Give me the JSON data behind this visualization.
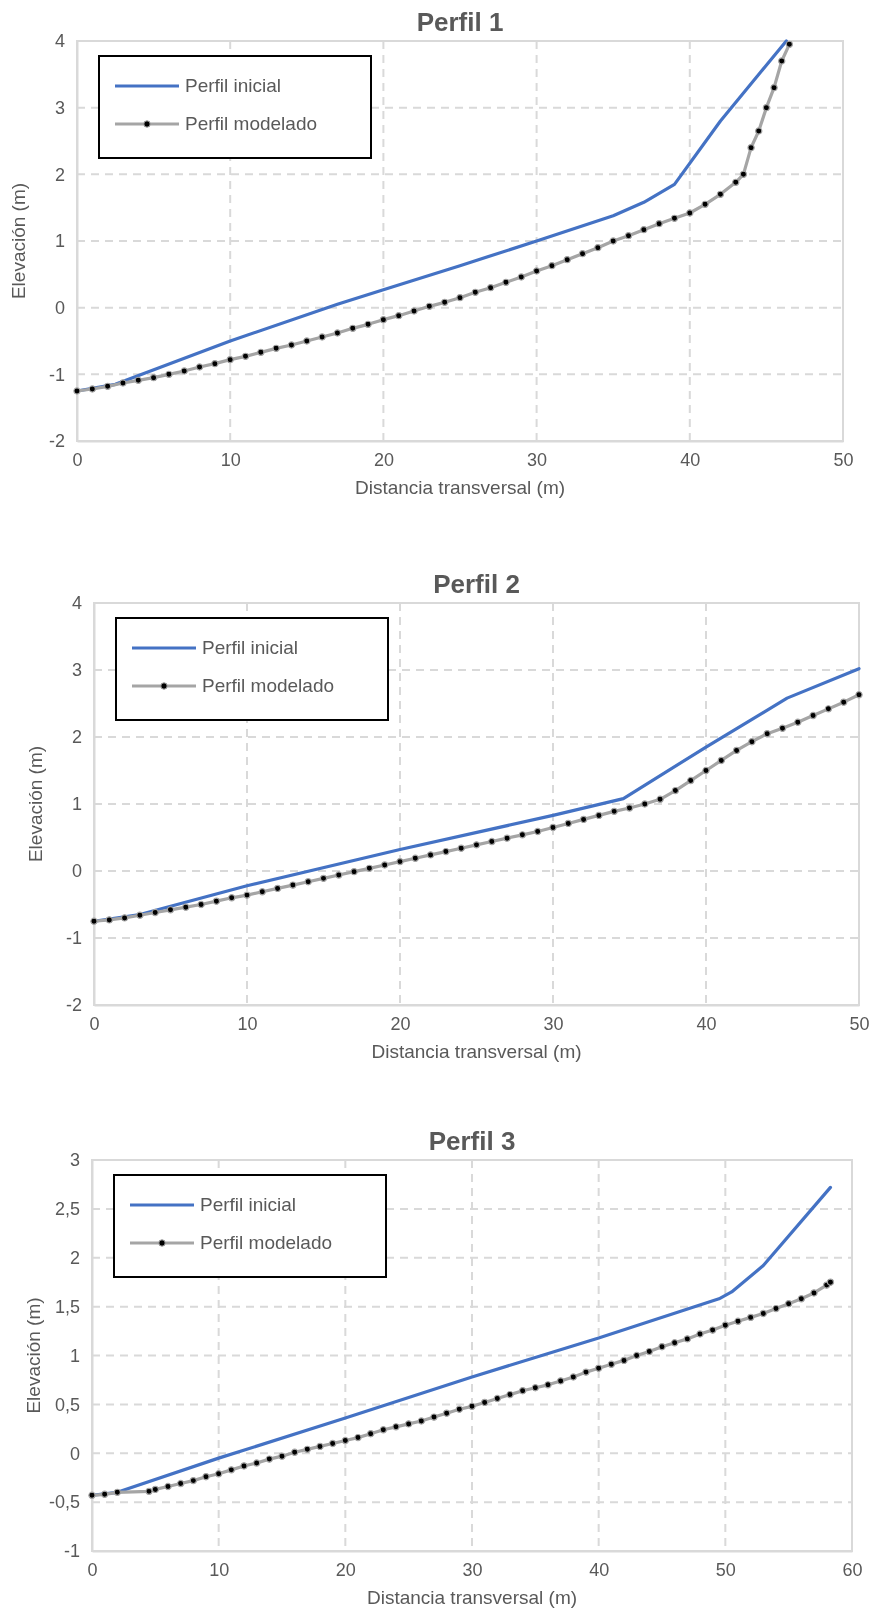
{
  "chart_data": [
    {
      "type": "line",
      "title": "Perfil 1",
      "xlabel": "Distancia transversal (m)",
      "ylabel": "Elevación (m)",
      "xlim": [
        0,
        50
      ],
      "xticks": [
        0,
        10,
        20,
        30,
        40,
        50
      ],
      "ylim": [
        -2,
        4
      ],
      "yticks": [
        -2,
        -1,
        0,
        1,
        2,
        3,
        4
      ],
      "grid": true,
      "legend": "top left",
      "series": [
        {
          "name": "Perfil inicial",
          "color": "#4472c4",
          "marker": "none",
          "x": [
            0,
            2.5,
            10,
            17,
            20,
            25,
            30,
            35,
            37,
            39,
            42,
            46.3
          ],
          "values": [
            -1.25,
            -1.15,
            -0.5,
            0.05,
            0.27,
            0.63,
            1.0,
            1.38,
            1.58,
            1.85,
            2.8,
            4.0
          ]
        },
        {
          "name": "Perfil modelado",
          "color": "#a5a5a5",
          "marker": "circle",
          "x": [
            0,
            1,
            2,
            3,
            4,
            5,
            6,
            7,
            8,
            9,
            10,
            11,
            12,
            13,
            14,
            15,
            16,
            17,
            18,
            19,
            20,
            21,
            22,
            23,
            24,
            25,
            26,
            27,
            28,
            29,
            30,
            31,
            32,
            33,
            34,
            35,
            36,
            37,
            38,
            39,
            40,
            41,
            42,
            43,
            43.5,
            44,
            44.5,
            45,
            45.5,
            46,
            46.5
          ],
          "values": [
            -1.25,
            -1.22,
            -1.18,
            -1.13,
            -1.09,
            -1.05,
            -1.0,
            -0.95,
            -0.89,
            -0.84,
            -0.78,
            -0.73,
            -0.67,
            -0.61,
            -0.56,
            -0.5,
            -0.44,
            -0.38,
            -0.31,
            -0.25,
            -0.18,
            -0.12,
            -0.05,
            0.02,
            0.08,
            0.15,
            0.23,
            0.3,
            0.38,
            0.46,
            0.55,
            0.63,
            0.72,
            0.81,
            0.9,
            1.0,
            1.08,
            1.17,
            1.26,
            1.34,
            1.42,
            1.55,
            1.7,
            1.88,
            2.0,
            2.4,
            2.65,
            3.0,
            3.3,
            3.7,
            3.95
          ]
        }
      ]
    },
    {
      "type": "line",
      "title": "Perfil 2",
      "xlabel": "Distancia transversal (m)",
      "ylabel": "Elevación (m)",
      "xlim": [
        0,
        50
      ],
      "xticks": [
        0,
        10,
        20,
        30,
        40,
        50
      ],
      "ylim": [
        -2,
        4
      ],
      "yticks": [
        -2,
        -1,
        0,
        1,
        2,
        3,
        4
      ],
      "grid": true,
      "legend": "top left",
      "series": [
        {
          "name": "Perfil inicial",
          "color": "#4472c4",
          "marker": "none",
          "x": [
            0,
            3,
            10,
            20,
            30,
            34.6,
            40,
            45.3,
            50
          ],
          "values": [
            -0.75,
            -0.65,
            -0.22,
            0.32,
            0.83,
            1.08,
            1.85,
            2.58,
            3.02
          ]
        },
        {
          "name": "Perfil modelado",
          "color": "#a5a5a5",
          "marker": "circle",
          "x": [
            0,
            1,
            2,
            3,
            4,
            5,
            6,
            7,
            8,
            9,
            10,
            11,
            12,
            13,
            14,
            15,
            16,
            17,
            18,
            19,
            20,
            21,
            22,
            23,
            24,
            25,
            26,
            27,
            28,
            29,
            30,
            31,
            32,
            33,
            34,
            35,
            36,
            37,
            38,
            39,
            40,
            41,
            42,
            43,
            44,
            45,
            46,
            47,
            48,
            49,
            50
          ],
          "values": [
            -0.75,
            -0.73,
            -0.7,
            -0.66,
            -0.62,
            -0.58,
            -0.54,
            -0.5,
            -0.45,
            -0.4,
            -0.36,
            -0.31,
            -0.26,
            -0.21,
            -0.16,
            -0.11,
            -0.06,
            -0.01,
            0.04,
            0.09,
            0.14,
            0.19,
            0.24,
            0.29,
            0.34,
            0.39,
            0.44,
            0.49,
            0.54,
            0.59,
            0.65,
            0.71,
            0.77,
            0.83,
            0.89,
            0.94,
            1.0,
            1.07,
            1.2,
            1.35,
            1.5,
            1.65,
            1.8,
            1.93,
            2.05,
            2.13,
            2.22,
            2.32,
            2.42,
            2.52,
            2.63
          ]
        }
      ]
    },
    {
      "type": "line",
      "title": "Perfil 3",
      "xlabel": "Distancia transversal (m)",
      "ylabel": "Elevación (m)",
      "xlim": [
        0,
        60
      ],
      "xticks": [
        0,
        10,
        20,
        30,
        40,
        50,
        60
      ],
      "ylim": [
        -1,
        3
      ],
      "yticks": [
        -1,
        {
          "value": -0.5,
          "label": "-0,5"
        },
        0,
        {
          "value": 0.5,
          "label": "0,5"
        },
        1,
        {
          "value": 1.5,
          "label": "1,5"
        },
        2,
        {
          "value": 2.5,
          "label": "2,5"
        },
        3
      ],
      "grid": true,
      "legend": "top left",
      "series": [
        {
          "name": "Perfil inicial",
          "color": "#4472c4",
          "marker": "none",
          "x": [
            0,
            2,
            10,
            20,
            30,
            40,
            49.5,
            50.5,
            53,
            58.3
          ],
          "values": [
            -0.43,
            -0.4,
            -0.05,
            0.36,
            0.78,
            1.18,
            1.58,
            1.65,
            1.92,
            2.72
          ]
        },
        {
          "name": "Perfil modelado",
          "color": "#a5a5a5",
          "marker": "circle",
          "x": [
            0,
            1,
            2,
            4.5,
            5,
            6,
            7,
            8,
            9,
            10,
            11,
            12,
            13,
            14,
            15,
            16,
            17,
            18,
            19,
            20,
            21,
            22,
            23,
            24,
            25,
            26,
            27,
            28,
            29,
            30,
            31,
            32,
            33,
            34,
            35,
            36,
            37,
            38,
            39,
            40,
            41,
            42,
            43,
            44,
            45,
            46,
            47,
            48,
            49,
            50,
            51,
            52,
            53,
            54,
            55,
            56,
            57,
            58,
            58.3
          ],
          "values": [
            -0.43,
            -0.42,
            -0.4,
            -0.39,
            -0.37,
            -0.34,
            -0.31,
            -0.28,
            -0.24,
            -0.21,
            -0.17,
            -0.13,
            -0.1,
            -0.06,
            -0.03,
            0.01,
            0.04,
            0.07,
            0.1,
            0.13,
            0.16,
            0.2,
            0.24,
            0.27,
            0.3,
            0.33,
            0.37,
            0.41,
            0.45,
            0.48,
            0.52,
            0.56,
            0.6,
            0.64,
            0.67,
            0.7,
            0.74,
            0.78,
            0.83,
            0.87,
            0.91,
            0.95,
            1.0,
            1.04,
            1.09,
            1.13,
            1.17,
            1.22,
            1.26,
            1.31,
            1.35,
            1.39,
            1.43,
            1.48,
            1.53,
            1.58,
            1.64,
            1.72,
            1.75
          ]
        }
      ]
    }
  ]
}
